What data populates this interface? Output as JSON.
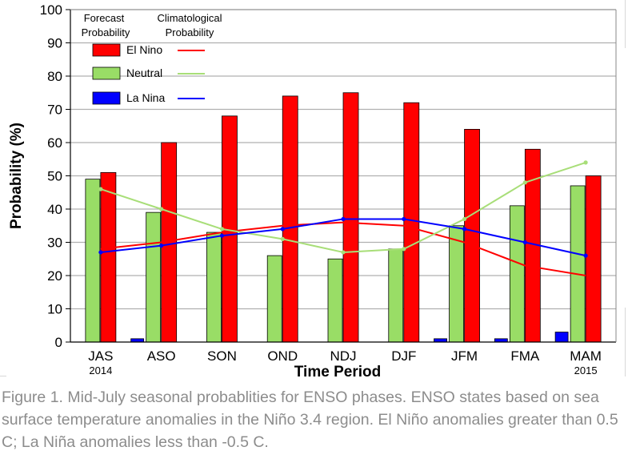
{
  "chart_data": {
    "type": "bar",
    "ylabel": "Probability (%)",
    "xlabel": "Time Period",
    "ylim": [
      0,
      100
    ],
    "yticks": [
      0,
      10,
      20,
      30,
      40,
      50,
      60,
      70,
      80,
      90,
      100
    ],
    "grid": true,
    "categories": [
      "JAS",
      "ASO",
      "SON",
      "OND",
      "NDJ",
      "DJF",
      "JFM",
      "FMA",
      "MAM"
    ],
    "year_labels": {
      "JAS": "2014",
      "MAM": "2015"
    },
    "legend": {
      "header_forecast": [
        "Forecast",
        "Probability"
      ],
      "header_climo": [
        "Climatological",
        "Probability"
      ],
      "placement": "top-left"
    },
    "series": [
      {
        "name": "El Nino",
        "color": "#ff0000",
        "forecast": [
          51,
          60,
          68,
          74,
          75,
          72,
          64,
          58,
          50
        ],
        "climatological": [
          28,
          30,
          33,
          35,
          36,
          35,
          30,
          23,
          20
        ]
      },
      {
        "name": "Neutral",
        "color": "#99dd66",
        "line_color": "#a8de78",
        "forecast": [
          49,
          39,
          33,
          26,
          25,
          28,
          35,
          41,
          47
        ],
        "climatological": [
          46,
          40,
          34,
          31,
          27,
          28,
          37,
          48,
          54
        ]
      },
      {
        "name": "La Nina",
        "color": "#0000ff",
        "forecast": [
          0,
          1,
          0,
          0,
          0,
          0,
          1,
          1,
          3
        ],
        "climatological": [
          27,
          29,
          32,
          34,
          37,
          37,
          34,
          30,
          26
        ]
      }
    ]
  },
  "caption": "Figure 1. Mid-July seasonal probablities for ENSO phases. ENSO states based on sea surface temperature anomalies in the Niño 3.4 region. El Niño anomalies greater than 0.5 C; La Niña anomalies less than -0.5 C."
}
